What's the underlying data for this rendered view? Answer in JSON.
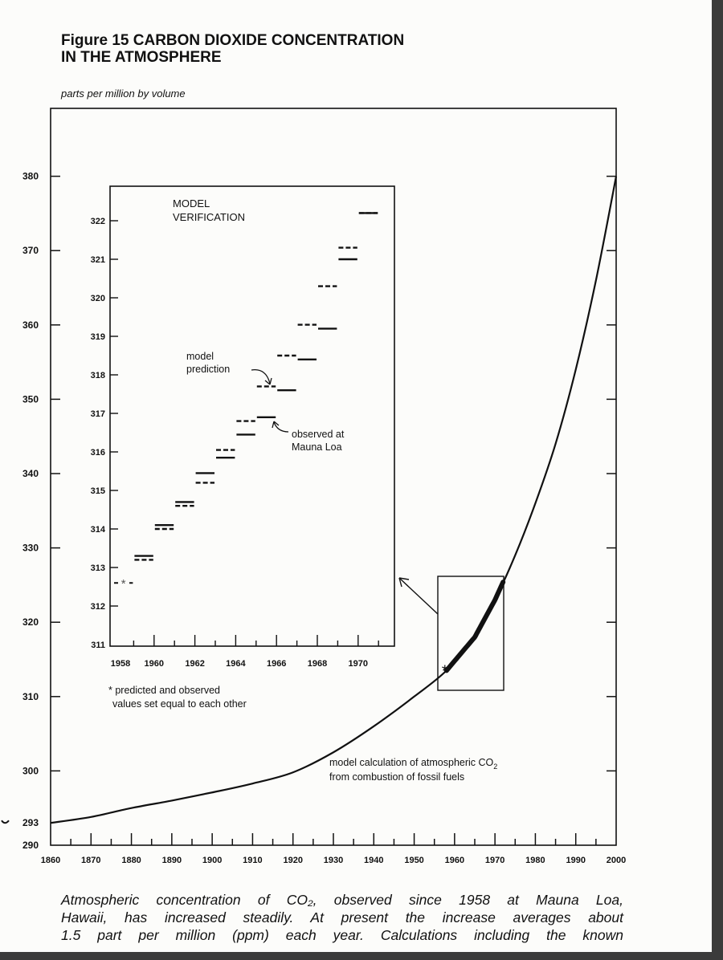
{
  "figure": {
    "title_line1": "Figure 15 CARBON DIOXIDE CONCENTRATION",
    "title_line2": "IN THE ATMOSPHERE",
    "subtitle": "parts per million by volume",
    "caption_lines": [
      "Atmospheric concentration of CO₂, observed since 1958 at Mauna Loa,",
      "Hawaii, has increased steadily. At present the increase averages about",
      "1.5 part per million (ppm) each year. Calculations including the known"
    ]
  },
  "chart_data": [
    {
      "type": "line",
      "ylabel": "parts per million by volume",
      "xlim": [
        1860,
        2000
      ],
      "ylim": [
        290,
        380
      ],
      "x_ticks": [
        "1860",
        "1870",
        "1880",
        "1890",
        "1900",
        "1910",
        "1920",
        "1930",
        "1940",
        "1950",
        "1960",
        "1970",
        "1980",
        "1990",
        "2000"
      ],
      "y_ticks": [
        "290",
        "300",
        "310",
        "320",
        "330",
        "340",
        "350",
        "360",
        "370",
        "380"
      ],
      "extra_y_label": "293",
      "grid": false,
      "series": [
        {
          "name": "model calculation of atmospheric CO₂ from combustion of fossil fuels",
          "x": [
            1860,
            1870,
            1880,
            1890,
            1900,
            1910,
            1920,
            1930,
            1940,
            1950,
            1958,
            1965,
            1970,
            1975,
            1980,
            1985,
            1990,
            1995,
            2000
          ],
          "y": [
            293,
            293.8,
            295,
            296,
            297.1,
            298.3,
            299.8,
            302.5,
            306,
            310,
            313.5,
            318,
            323,
            329,
            336,
            344,
            354,
            366,
            380
          ]
        }
      ],
      "highlight_range": [
        1958,
        1972
      ],
      "annotations": {
        "curve_label_line1": "model calculation of atmospheric CO",
        "curve_label_sub": "2",
        "curve_label_line2": "from combustion of fossil fuels"
      }
    },
    {
      "type": "step",
      "title_line1": "MODEL",
      "title_line2": "VERIFICATION",
      "xlim": [
        1958,
        1971
      ],
      "ylim": [
        311,
        322
      ],
      "x_ticks": [
        "1958",
        "1960",
        "1962",
        "1964",
        "1966",
        "1968",
        "1970"
      ],
      "y_ticks": [
        "311",
        "312",
        "313",
        "314",
        "315",
        "316",
        "317",
        "318",
        "319",
        "320",
        "321",
        "322"
      ],
      "grid": false,
      "years": [
        1958,
        1959,
        1960,
        1961,
        1962,
        1963,
        1964,
        1965,
        1966,
        1967,
        1968,
        1969,
        1970
      ],
      "series": [
        {
          "name": "model prediction",
          "style": "dashed",
          "values": [
            312.6,
            313.2,
            314.0,
            314.6,
            315.2,
            316.05,
            316.8,
            317.7,
            318.5,
            319.3,
            320.3,
            321.3,
            322.2
          ]
        },
        {
          "name": "observed at Mauna Loa",
          "style": "solid",
          "values": [
            312.6,
            313.3,
            314.1,
            314.7,
            315.45,
            315.85,
            316.45,
            316.9,
            317.6,
            318.4,
            319.2,
            321.0,
            322.2
          ]
        }
      ],
      "annotations": {
        "prediction_line1": "model",
        "prediction_line2": "prediction",
        "observed_line1": "observed at",
        "observed_line2": "Mauna Loa",
        "footnote_line1": "* predicted and observed",
        "footnote_line2": "values set equal to each other",
        "star_marker": "*"
      }
    }
  ]
}
